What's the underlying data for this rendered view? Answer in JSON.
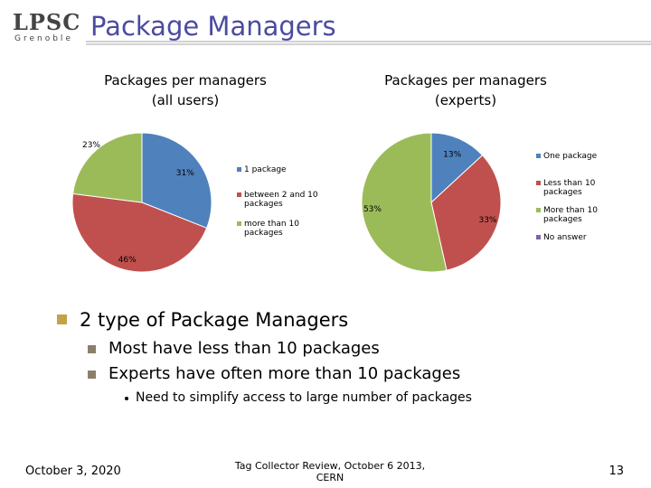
{
  "header": {
    "logo": "LPSC",
    "logo_sub": "Grenoble",
    "title": "Package Managers"
  },
  "chart_data": [
    {
      "type": "pie",
      "title": [
        "Packages per managers",
        "(all users)"
      ],
      "categories": [
        "1 package",
        "between 2 and 10 packages",
        "more than 10 packages"
      ],
      "values": [
        31,
        46,
        23
      ],
      "value_labels": [
        "31%",
        "46%",
        "23%"
      ],
      "colors": [
        "#4f81bd",
        "#c0504d",
        "#9bbb59"
      ]
    },
    {
      "type": "pie",
      "title": [
        "Packages per managers",
        "(experts)"
      ],
      "categories": [
        "One package",
        "Less than 10 packages",
        "More than 10 packages",
        "No answer"
      ],
      "values": [
        13,
        33,
        53,
        0
      ],
      "value_labels": [
        "13%",
        "33%",
        "53%",
        null
      ],
      "colors": [
        "#4f81bd",
        "#c0504d",
        "#9bbb59",
        "#8064a2"
      ]
    }
  ],
  "bullets": {
    "main": "2 type of Package Managers",
    "sub": [
      "Most have less than 10 packages",
      "Experts have often more than 10 packages"
    ],
    "subsub": "Need to simplify access to large number of packages"
  },
  "footer": {
    "date": "October 3, 2020",
    "center": [
      "Tag Collector Review, October 6 2013,",
      "CERN"
    ],
    "page": "13"
  }
}
